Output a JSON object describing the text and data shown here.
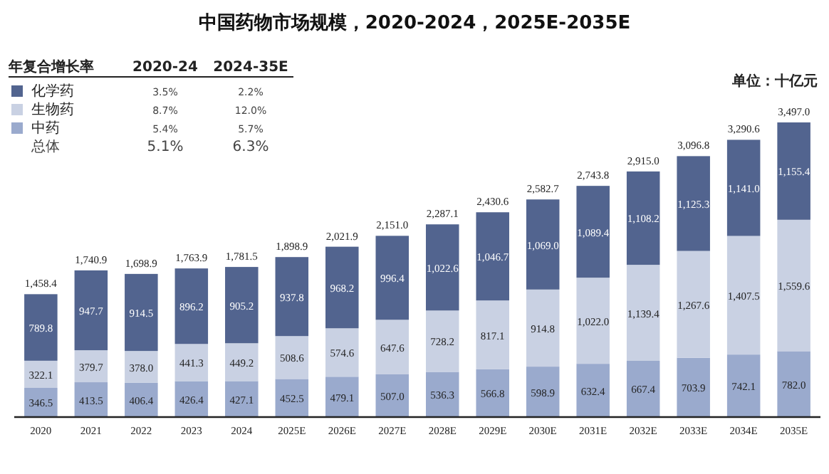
{
  "chart_data": {
    "type": "bar",
    "title": "中国药物市场规模，2020-2024，2025E-2035E",
    "ylabel": "单位：十亿元",
    "stacked": true,
    "legend": "top left",
    "categories": [
      "2020",
      "2021",
      "2022",
      "2023",
      "2024",
      "2025E",
      "2026E",
      "2027E",
      "2028E",
      "2029E",
      "2030E",
      "2031E",
      "2032E",
      "2033E",
      "2034E",
      "2035E"
    ],
    "series": [
      {
        "name": "中药",
        "color": "#9aaacd",
        "values": [
          346.5,
          413.5,
          406.4,
          426.4,
          427.1,
          452.5,
          479.1,
          507.0,
          536.3,
          566.8,
          598.9,
          632.4,
          667.4,
          703.9,
          742.1,
          782.0
        ],
        "value_labels": [
          "346.5",
          "413.5",
          "406.4",
          "426.4",
          "427.1",
          "452.5",
          "479.1",
          "507.0",
          "536.3",
          "566.8",
          "598.9",
          "632.4",
          "667.4",
          "703.9",
          "742.1",
          "782.0"
        ]
      },
      {
        "name": "生物药",
        "color": "#c9d1e3",
        "values": [
          322.1,
          379.7,
          378.0,
          441.3,
          449.2,
          508.6,
          574.6,
          647.6,
          728.2,
          817.1,
          914.8,
          1022.0,
          1139.4,
          1267.6,
          1407.5,
          1559.6
        ],
        "value_labels": [
          "322.1",
          "379.7",
          "378.0",
          "441.3",
          "449.2",
          "508.6",
          "574.6",
          "647.6",
          "728.2",
          "817.1",
          "914.8",
          "1,022.0",
          "1,139.4",
          "1,267.6",
          "1,407.5",
          "1,559.6"
        ]
      },
      {
        "name": "化学药",
        "color": "#52648f",
        "values": [
          789.8,
          947.7,
          914.5,
          896.2,
          905.2,
          937.8,
          968.2,
          996.4,
          1022.6,
          1046.7,
          1069.0,
          1089.4,
          1108.2,
          1125.3,
          1141.0,
          1155.4
        ],
        "value_labels": [
          "789.8",
          "947.7",
          "914.5",
          "896.2",
          "905.2",
          "937.8",
          "968.2",
          "996.4",
          "1,022.6",
          "1,046.7",
          "1,069.0",
          "1,089.4",
          "1,108.2",
          "1,125.3",
          "1,141.0",
          "1,155.4"
        ]
      }
    ],
    "totals": [
      "1,458.4",
      "1,740.9",
      "1,698.9",
      "1,763.9",
      "1,781.5",
      "1,898.9",
      "2,021.9",
      "2,151.0",
      "2,287.1",
      "2,430.6",
      "2,582.7",
      "2,743.8",
      "2,915.0",
      "3,096.8",
      "3,290.6",
      "3,497.0"
    ],
    "annotations": [
      "年复合增长率",
      "2020-24",
      "2024-35E",
      "3.5%",
      "2.2%",
      "8.7%",
      "12.0%",
      "5.4%",
      "5.7%",
      "总体",
      "5.1%",
      "6.3%"
    ]
  }
}
